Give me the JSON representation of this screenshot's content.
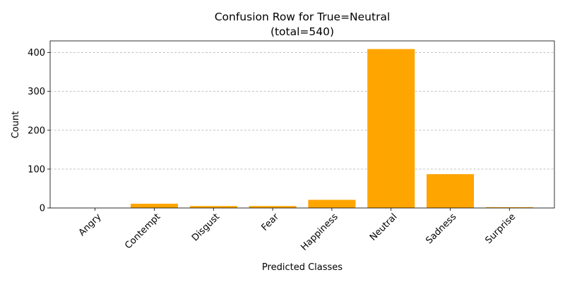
{
  "chart_data": {
    "type": "bar",
    "title": "Confusion Row for True=Neutral",
    "subtitle": "(total=540)",
    "xlabel": "Predicted Classes",
    "ylabel": "Count",
    "categories": [
      "Angry",
      "Contempt",
      "Disgust",
      "Fear",
      "Happiness",
      "Neutral",
      "Sadness",
      "Surprise"
    ],
    "values": [
      0,
      11,
      5,
      5,
      21,
      409,
      87,
      2
    ],
    "ylim": [
      0,
      430
    ],
    "yticks": [
      0,
      100,
      200,
      300,
      400
    ],
    "ytick_labels": [
      "0",
      "100",
      "200",
      "300",
      "400"
    ],
    "bar_color": "#ffa500",
    "grid": "y-dashed",
    "legend": "none"
  }
}
